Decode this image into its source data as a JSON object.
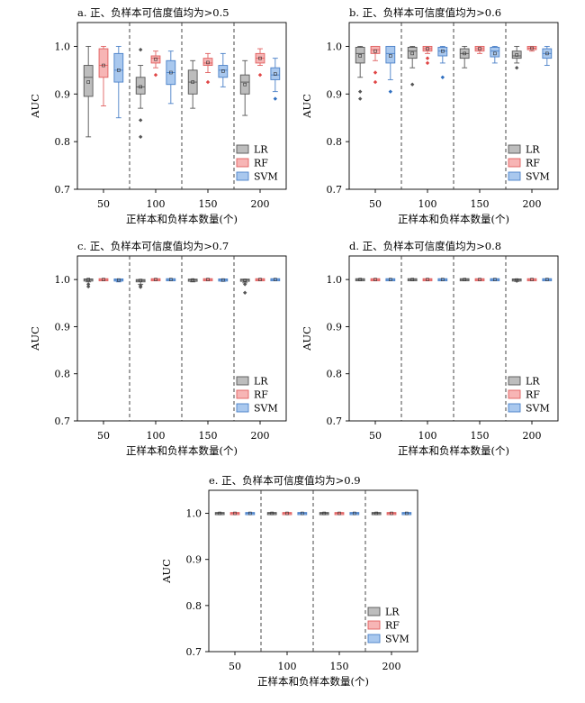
{
  "chart_data": [
    {
      "type": "box",
      "title": "a. 正、负样本可信度值均为>0.5",
      "xlabel": "正样本和负样本数量(个)",
      "ylabel": "AUC",
      "categories": [
        "50",
        "100",
        "150",
        "200"
      ],
      "ylim": [
        0.7,
        1.05
      ],
      "yticks": [
        "0.7",
        "0.8",
        "0.9",
        "1.0"
      ],
      "legend": {
        "placement": "bottom-right",
        "entries": [
          "LR",
          "RF",
          "SVM"
        ]
      },
      "series": [
        {
          "name": "LR",
          "boxes": [
            {
              "whisker_low": 0.81,
              "q1": 0.895,
              "median": 0.935,
              "q3": 0.96,
              "whisker_high": 1.0,
              "mean": 0.925,
              "outliers": []
            },
            {
              "whisker_low": 0.87,
              "q1": 0.9,
              "median": 0.915,
              "q3": 0.935,
              "whisker_high": 0.96,
              "mean": 0.915,
              "outliers": [
                0.81,
                0.845,
                0.993
              ]
            },
            {
              "whisker_low": 0.87,
              "q1": 0.9,
              "median": 0.925,
              "q3": 0.95,
              "whisker_high": 0.97,
              "mean": 0.925,
              "outliers": []
            },
            {
              "whisker_low": 0.855,
              "q1": 0.9,
              "median": 0.925,
              "q3": 0.94,
              "whisker_high": 0.97,
              "mean": 0.92,
              "outliers": []
            }
          ]
        },
        {
          "name": "RF",
          "boxes": [
            {
              "whisker_low": 0.875,
              "q1": 0.935,
              "median": 0.96,
              "q3": 0.995,
              "whisker_high": 1.0,
              "mean": 0.96,
              "outliers": []
            },
            {
              "whisker_low": 0.955,
              "q1": 0.965,
              "median": 0.975,
              "q3": 0.98,
              "whisker_high": 0.99,
              "mean": 0.973,
              "outliers": [
                0.94
              ]
            },
            {
              "whisker_low": 0.945,
              "q1": 0.96,
              "median": 0.965,
              "q3": 0.975,
              "whisker_high": 0.985,
              "mean": 0.966,
              "outliers": [
                0.925
              ]
            },
            {
              "whisker_low": 0.96,
              "q1": 0.965,
              "median": 0.975,
              "q3": 0.985,
              "whisker_high": 0.995,
              "mean": 0.975,
              "outliers": [
                0.94
              ]
            }
          ]
        },
        {
          "name": "SVM",
          "boxes": [
            {
              "whisker_low": 0.85,
              "q1": 0.925,
              "median": 0.95,
              "q3": 0.985,
              "whisker_high": 1.0,
              "mean": 0.95,
              "outliers": []
            },
            {
              "whisker_low": 0.88,
              "q1": 0.92,
              "median": 0.945,
              "q3": 0.97,
              "whisker_high": 0.99,
              "mean": 0.945,
              "outliers": []
            },
            {
              "whisker_low": 0.915,
              "q1": 0.935,
              "median": 0.95,
              "q3": 0.96,
              "whisker_high": 0.985,
              "mean": 0.948,
              "outliers": []
            },
            {
              "whisker_low": 0.905,
              "q1": 0.93,
              "median": 0.94,
              "q3": 0.955,
              "whisker_high": 0.975,
              "mean": 0.942,
              "outliers": [
                0.89
              ]
            }
          ]
        }
      ]
    },
    {
      "type": "box",
      "title": "b. 正、负样本可信度值均为>0.6",
      "xlabel": "正样本和负样本数量(个)",
      "ylabel": "AUC",
      "categories": [
        "50",
        "100",
        "150",
        "200"
      ],
      "ylim": [
        0.7,
        1.05
      ],
      "yticks": [
        "0.7",
        "0.8",
        "0.9",
        "1.0"
      ],
      "legend": {
        "placement": "bottom-right",
        "entries": [
          "LR",
          "RF",
          "SVM"
        ]
      },
      "series": [
        {
          "name": "LR",
          "boxes": [
            {
              "whisker_low": 0.935,
              "q1": 0.965,
              "median": 0.985,
              "q3": 0.998,
              "whisker_high": 1.0,
              "mean": 0.98,
              "outliers": [
                0.89,
                0.905
              ]
            },
            {
              "whisker_low": 0.955,
              "q1": 0.975,
              "median": 0.99,
              "q3": 0.998,
              "whisker_high": 1.0,
              "mean": 0.985,
              "outliers": [
                0.92
              ]
            },
            {
              "whisker_low": 0.955,
              "q1": 0.975,
              "median": 0.985,
              "q3": 0.995,
              "whisker_high": 1.0,
              "mean": 0.985,
              "outliers": []
            },
            {
              "whisker_low": 0.965,
              "q1": 0.975,
              "median": 0.98,
              "q3": 0.99,
              "whisker_high": 1.0,
              "mean": 0.982,
              "outliers": [
                0.955
              ]
            }
          ]
        },
        {
          "name": "RF",
          "boxes": [
            {
              "whisker_low": 0.97,
              "q1": 0.985,
              "median": 0.993,
              "q3": 1.0,
              "whisker_high": 1.0,
              "mean": 0.99,
              "outliers": [
                0.925,
                0.945
              ]
            },
            {
              "whisker_low": 0.985,
              "q1": 0.99,
              "median": 0.995,
              "q3": 1.0,
              "whisker_high": 1.0,
              "mean": 0.995,
              "outliers": [
                0.965,
                0.975
              ]
            },
            {
              "whisker_low": 0.985,
              "q1": 0.99,
              "median": 0.995,
              "q3": 1.0,
              "whisker_high": 1.0,
              "mean": 0.995,
              "outliers": []
            },
            {
              "whisker_low": 0.99,
              "q1": 0.993,
              "median": 0.996,
              "q3": 1.0,
              "whisker_high": 1.0,
              "mean": 0.996,
              "outliers": []
            }
          ]
        },
        {
          "name": "SVM",
          "boxes": [
            {
              "whisker_low": 0.93,
              "q1": 0.965,
              "median": 0.985,
              "q3": 1.0,
              "whisker_high": 1.0,
              "mean": 0.98,
              "outliers": [
                0.905
              ]
            },
            {
              "whisker_low": 0.965,
              "q1": 0.98,
              "median": 0.99,
              "q3": 0.998,
              "whisker_high": 1.0,
              "mean": 0.99,
              "outliers": [
                0.935
              ]
            },
            {
              "whisker_low": 0.965,
              "q1": 0.978,
              "median": 0.99,
              "q3": 0.998,
              "whisker_high": 1.0,
              "mean": 0.985,
              "outliers": []
            },
            {
              "whisker_low": 0.96,
              "q1": 0.975,
              "median": 0.985,
              "q3": 0.995,
              "whisker_high": 1.0,
              "mean": 0.985,
              "outliers": []
            }
          ]
        }
      ]
    },
    {
      "type": "box",
      "title": "c. 正、负样本可信度值均为>0.7",
      "xlabel": "正样本和负样本数量(个)",
      "ylabel": "AUC",
      "categories": [
        "50",
        "100",
        "150",
        "200"
      ],
      "ylim": [
        0.7,
        1.05
      ],
      "yticks": [
        "0.7",
        "0.8",
        "0.9",
        "1.0"
      ],
      "legend": {
        "placement": "bottom-right",
        "entries": [
          "LR",
          "RF",
          "SVM"
        ]
      },
      "series": [
        {
          "name": "LR",
          "boxes": [
            {
              "whisker_low": 0.995,
              "q1": 0.998,
              "median": 1.0,
              "q3": 1.0,
              "whisker_high": 1.0,
              "mean": 1.0,
              "outliers": [
                0.985,
                0.99
              ]
            },
            {
              "whisker_low": 0.99,
              "q1": 0.995,
              "median": 0.998,
              "q3": 1.0,
              "whisker_high": 1.0,
              "mean": 0.998,
              "outliers": [
                0.984,
                0.987
              ]
            },
            {
              "whisker_low": 0.995,
              "q1": 0.997,
              "median": 0.999,
              "q3": 1.0,
              "whisker_high": 1.0,
              "mean": 0.999,
              "outliers": []
            },
            {
              "whisker_low": 0.993,
              "q1": 0.997,
              "median": 0.999,
              "q3": 1.0,
              "whisker_high": 1.0,
              "mean": 0.998,
              "outliers": [
                0.972,
                0.99
              ]
            }
          ]
        },
        {
          "name": "RF",
          "boxes": [
            {
              "whisker_low": 0.999,
              "q1": 0.999,
              "median": 1.0,
              "q3": 1.0,
              "whisker_high": 1.0,
              "mean": 1.0,
              "outliers": []
            },
            {
              "whisker_low": 0.999,
              "q1": 0.999,
              "median": 1.0,
              "q3": 1.0,
              "whisker_high": 1.0,
              "mean": 1.0,
              "outliers": []
            },
            {
              "whisker_low": 0.999,
              "q1": 0.999,
              "median": 1.0,
              "q3": 1.0,
              "whisker_high": 1.0,
              "mean": 1.0,
              "outliers": []
            },
            {
              "whisker_low": 0.999,
              "q1": 0.999,
              "median": 1.0,
              "q3": 1.0,
              "whisker_high": 1.0,
              "mean": 1.0,
              "outliers": []
            }
          ]
        },
        {
          "name": "SVM",
          "boxes": [
            {
              "whisker_low": 0.995,
              "q1": 0.998,
              "median": 0.999,
              "q3": 1.0,
              "whisker_high": 1.0,
              "mean": 0.999,
              "outliers": []
            },
            {
              "whisker_low": 0.998,
              "q1": 0.999,
              "median": 1.0,
              "q3": 1.0,
              "whisker_high": 1.0,
              "mean": 1.0,
              "outliers": []
            },
            {
              "whisker_low": 0.996,
              "q1": 0.998,
              "median": 0.999,
              "q3": 1.0,
              "whisker_high": 1.0,
              "mean": 0.999,
              "outliers": []
            },
            {
              "whisker_low": 0.998,
              "q1": 0.999,
              "median": 1.0,
              "q3": 1.0,
              "whisker_high": 1.0,
              "mean": 1.0,
              "outliers": []
            }
          ]
        }
      ]
    },
    {
      "type": "box",
      "title": "d. 正、负样本可信度值均为>0.8",
      "xlabel": "正样本和负样本数量(个)",
      "ylabel": "AUC",
      "categories": [
        "50",
        "100",
        "150",
        "200"
      ],
      "ylim": [
        0.7,
        1.05
      ],
      "yticks": [
        "0.7",
        "0.8",
        "0.9",
        "1.0"
      ],
      "legend": {
        "placement": "bottom-right",
        "entries": [
          "LR",
          "RF",
          "SVM"
        ]
      },
      "series": [
        {
          "name": "LR",
          "boxes": [
            {
              "whisker_low": 0.999,
              "q1": 0.999,
              "median": 1.0,
              "q3": 1.0,
              "whisker_high": 1.0,
              "mean": 1.0,
              "outliers": []
            },
            {
              "whisker_low": 0.999,
              "q1": 0.999,
              "median": 1.0,
              "q3": 1.0,
              "whisker_high": 1.0,
              "mean": 1.0,
              "outliers": []
            },
            {
              "whisker_low": 0.999,
              "q1": 0.999,
              "median": 1.0,
              "q3": 1.0,
              "whisker_high": 1.0,
              "mean": 1.0,
              "outliers": []
            },
            {
              "whisker_low": 0.996,
              "q1": 0.998,
              "median": 0.999,
              "q3": 1.0,
              "whisker_high": 1.0,
              "mean": 0.999,
              "outliers": [
                0.997
              ]
            }
          ]
        },
        {
          "name": "RF",
          "boxes": [
            {
              "whisker_low": 0.999,
              "q1": 0.999,
              "median": 1.0,
              "q3": 1.0,
              "whisker_high": 1.0,
              "mean": 1.0,
              "outliers": []
            },
            {
              "whisker_low": 0.999,
              "q1": 0.999,
              "median": 1.0,
              "q3": 1.0,
              "whisker_high": 1.0,
              "mean": 1.0,
              "outliers": []
            },
            {
              "whisker_low": 0.999,
              "q1": 0.999,
              "median": 1.0,
              "q3": 1.0,
              "whisker_high": 1.0,
              "mean": 1.0,
              "outliers": []
            },
            {
              "whisker_low": 0.999,
              "q1": 0.999,
              "median": 1.0,
              "q3": 1.0,
              "whisker_high": 1.0,
              "mean": 1.0,
              "outliers": []
            }
          ]
        },
        {
          "name": "SVM",
          "boxes": [
            {
              "whisker_low": 0.999,
              "q1": 0.999,
              "median": 1.0,
              "q3": 1.0,
              "whisker_high": 1.0,
              "mean": 1.0,
              "outliers": []
            },
            {
              "whisker_low": 0.999,
              "q1": 0.999,
              "median": 1.0,
              "q3": 1.0,
              "whisker_high": 1.0,
              "mean": 1.0,
              "outliers": []
            },
            {
              "whisker_low": 0.999,
              "q1": 0.999,
              "median": 1.0,
              "q3": 1.0,
              "whisker_high": 1.0,
              "mean": 1.0,
              "outliers": []
            },
            {
              "whisker_low": 0.999,
              "q1": 0.999,
              "median": 1.0,
              "q3": 1.0,
              "whisker_high": 1.0,
              "mean": 1.0,
              "outliers": []
            }
          ]
        }
      ]
    },
    {
      "type": "box",
      "title": "e. 正、负样本可信度值均为>0.9",
      "xlabel": "正样本和负样本数量(个)",
      "ylabel": "AUC",
      "categories": [
        "50",
        "100",
        "150",
        "200"
      ],
      "ylim": [
        0.7,
        1.05
      ],
      "yticks": [
        "0.7",
        "0.8",
        "0.9",
        "1.0"
      ],
      "legend": {
        "placement": "bottom-right",
        "entries": [
          "LR",
          "RF",
          "SVM"
        ]
      },
      "series": [
        {
          "name": "LR",
          "boxes": [
            {
              "whisker_low": 0.999,
              "q1": 0.999,
              "median": 1.0,
              "q3": 1.0,
              "whisker_high": 1.0,
              "mean": 1.0,
              "outliers": []
            },
            {
              "whisker_low": 0.999,
              "q1": 0.999,
              "median": 1.0,
              "q3": 1.0,
              "whisker_high": 1.0,
              "mean": 1.0,
              "outliers": []
            },
            {
              "whisker_low": 0.999,
              "q1": 0.999,
              "median": 1.0,
              "q3": 1.0,
              "whisker_high": 1.0,
              "mean": 1.0,
              "outliers": []
            },
            {
              "whisker_low": 0.999,
              "q1": 0.999,
              "median": 1.0,
              "q3": 1.0,
              "whisker_high": 1.0,
              "mean": 1.0,
              "outliers": []
            }
          ]
        },
        {
          "name": "RF",
          "boxes": [
            {
              "whisker_low": 0.999,
              "q1": 0.999,
              "median": 1.0,
              "q3": 1.0,
              "whisker_high": 1.0,
              "mean": 1.0,
              "outliers": []
            },
            {
              "whisker_low": 0.999,
              "q1": 0.999,
              "median": 1.0,
              "q3": 1.0,
              "whisker_high": 1.0,
              "mean": 1.0,
              "outliers": []
            },
            {
              "whisker_low": 0.999,
              "q1": 0.999,
              "median": 1.0,
              "q3": 1.0,
              "whisker_high": 1.0,
              "mean": 1.0,
              "outliers": []
            },
            {
              "whisker_low": 0.999,
              "q1": 0.999,
              "median": 1.0,
              "q3": 1.0,
              "whisker_high": 1.0,
              "mean": 1.0,
              "outliers": []
            }
          ]
        },
        {
          "name": "SVM",
          "boxes": [
            {
              "whisker_low": 0.999,
              "q1": 0.999,
              "median": 1.0,
              "q3": 1.0,
              "whisker_high": 1.0,
              "mean": 1.0,
              "outliers": []
            },
            {
              "whisker_low": 0.999,
              "q1": 0.999,
              "median": 1.0,
              "q3": 1.0,
              "whisker_high": 1.0,
              "mean": 1.0,
              "outliers": []
            },
            {
              "whisker_low": 0.999,
              "q1": 0.999,
              "median": 1.0,
              "q3": 1.0,
              "whisker_high": 1.0,
              "mean": 1.0,
              "outliers": []
            },
            {
              "whisker_low": 0.999,
              "q1": 0.999,
              "median": 1.0,
              "q3": 1.0,
              "whisker_high": 1.0,
              "mean": 1.0,
              "outliers": []
            }
          ]
        }
      ]
    }
  ],
  "colors": {
    "LR": {
      "fill": "#bdbdbd",
      "stroke": "#555555",
      "outlier": "#555555"
    },
    "RF": {
      "fill": "#f7b5b5",
      "stroke": "#e06060",
      "outlier": "#e04545"
    },
    "SVM": {
      "fill": "#a9c8ee",
      "stroke": "#4a80c8",
      "outlier": "#2f6fc0"
    }
  }
}
